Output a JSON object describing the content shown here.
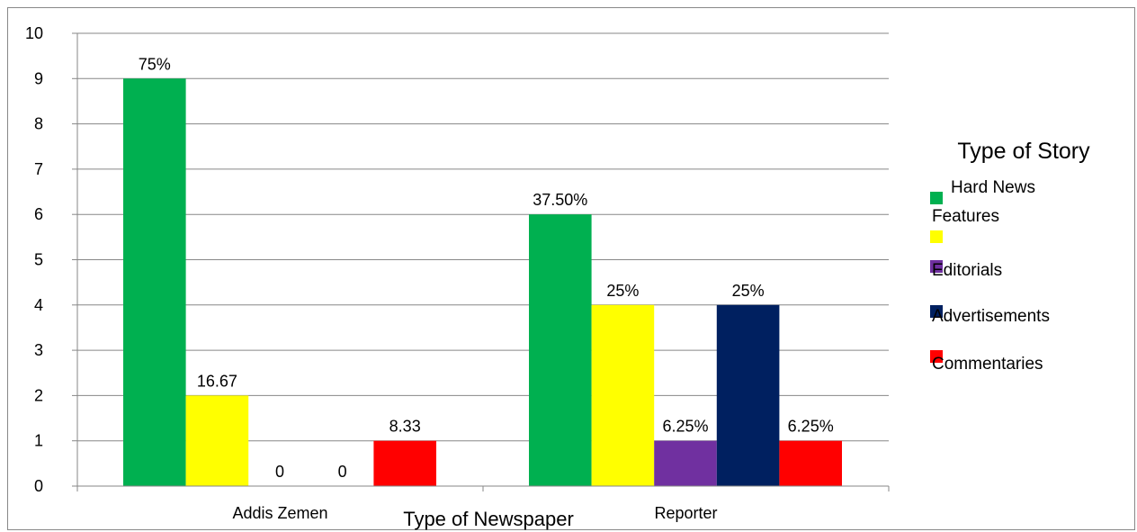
{
  "chart_data": {
    "type": "bar",
    "xlabel": "Type of Newspaper",
    "ylabel": "",
    "ylim": [
      0,
      10
    ],
    "yticks": [
      0,
      1,
      2,
      3,
      4,
      5,
      6,
      7,
      8,
      9,
      10
    ],
    "grid": true,
    "categories": [
      "Addis Zemen",
      "Reporter"
    ],
    "legend": {
      "title": "Type of Story",
      "placement": "right",
      "entries": [
        "Hard News",
        "Features",
        "Editorials",
        "Advertisements",
        "Commentaries"
      ]
    },
    "series": [
      {
        "name": "Hard News",
        "color": "#00B050",
        "values": [
          9,
          6
        ],
        "labels": [
          "75%",
          "37.50%"
        ]
      },
      {
        "name": "Features",
        "color": "#FFFF00",
        "values": [
          2,
          4
        ],
        "labels": [
          "16.67",
          "25%"
        ]
      },
      {
        "name": "Editorials",
        "color": "#7030A0",
        "values": [
          0,
          1
        ],
        "labels": [
          "0",
          "6.25%"
        ]
      },
      {
        "name": "Advertisements",
        "color": "#002060",
        "values": [
          0,
          4
        ],
        "labels": [
          "0",
          "25%"
        ]
      },
      {
        "name": "Commentaries",
        "color": "#FF0000",
        "values": [
          1,
          1
        ],
        "labels": [
          "8.33",
          "6.25%"
        ]
      }
    ]
  }
}
